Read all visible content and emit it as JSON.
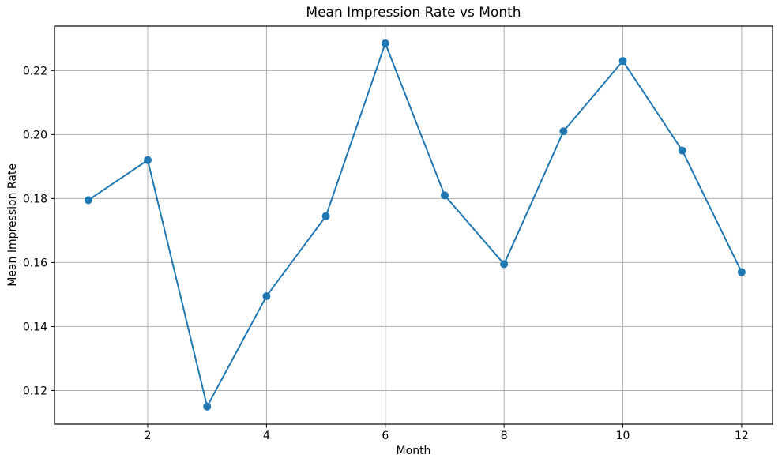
{
  "figure": {
    "background": "#ffffff"
  },
  "chart_data": {
    "type": "line",
    "title": "Mean Impression Rate vs Month",
    "xlabel": "Month",
    "ylabel": "Mean Impression Rate",
    "x": [
      1,
      2,
      3,
      4,
      5,
      6,
      7,
      8,
      9,
      10,
      11,
      12
    ],
    "series": [
      {
        "name": "Mean Impression Rate",
        "values": [
          0.1795,
          0.192,
          0.115,
          0.1495,
          0.1745,
          0.2285,
          0.181,
          0.1595,
          0.201,
          0.223,
          0.195,
          0.157
        ],
        "color": "#1f77b4",
        "marker": "circle"
      }
    ],
    "xlim": [
      0.43,
      12.52
    ],
    "ylim": [
      0.1095,
      0.2339
    ],
    "xticks": [
      2,
      4,
      6,
      8,
      10,
      12
    ],
    "xtick_labels": [
      "2",
      "4",
      "6",
      "8",
      "10",
      "12"
    ],
    "yticks": [
      0.12,
      0.14,
      0.16,
      0.18,
      0.2,
      0.22
    ],
    "ytick_labels": [
      "0.12",
      "0.14",
      "0.16",
      "0.18",
      "0.20",
      "0.22"
    ],
    "grid": true,
    "grid_color": "#b0b0b0",
    "spine_color": "#000000",
    "text_color": "#000000",
    "legend": "none"
  }
}
